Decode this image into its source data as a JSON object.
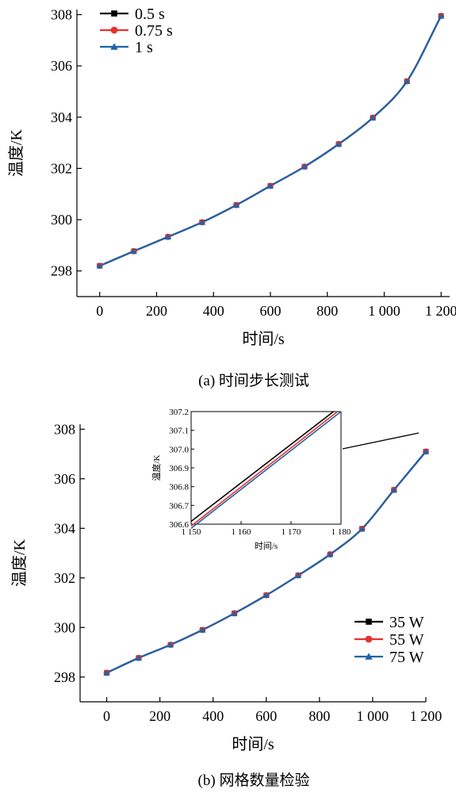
{
  "colors": {
    "series_1": "#000000",
    "series_2": "#e8302f",
    "series_3": "#1f64a8"
  },
  "chart_data": [
    {
      "type": "line",
      "caption": "(a) 时间步长测试",
      "xlabel": "时间/s",
      "ylabel": "温度/K",
      "xlim": [
        -80,
        1230
      ],
      "ylim": [
        297.0,
        308.2
      ],
      "xticks": [
        0,
        200,
        400,
        600,
        800,
        1000,
        1200
      ],
      "xtick_labels": [
        "0",
        "200",
        "400",
        "600",
        "800",
        "1 000",
        "1 200"
      ],
      "yticks": [
        298,
        300,
        302,
        304,
        306,
        308
      ],
      "ytick_labels": [
        "298",
        "300",
        "302",
        "304",
        "306",
        "308"
      ],
      "legend_position": "top-left",
      "x": [
        0,
        120,
        240,
        360,
        480,
        600,
        720,
        840,
        960,
        1080,
        1200
      ],
      "series": [
        {
          "name": "0.5 s",
          "marker": "square",
          "values": [
            298.2,
            298.77,
            299.33,
            299.9,
            300.57,
            301.32,
            302.07,
            302.95,
            303.98,
            305.4,
            307.95
          ]
        },
        {
          "name": "0.75 s",
          "marker": "circle",
          "values": [
            298.2,
            298.77,
            299.33,
            299.9,
            300.57,
            301.32,
            302.07,
            302.95,
            303.98,
            305.4,
            307.95
          ]
        },
        {
          "name": "1 s",
          "marker": "triangle",
          "values": [
            298.2,
            298.77,
            299.33,
            299.9,
            300.57,
            301.32,
            302.07,
            302.95,
            303.98,
            305.4,
            307.95
          ]
        }
      ]
    },
    {
      "type": "line",
      "caption": "(b) 网格数量检验",
      "xlabel": "时间/s",
      "ylabel": "温度/K",
      "xlim": [
        -100,
        1200
      ],
      "ylim": [
        297.0,
        308.2
      ],
      "xticks": [
        0,
        200,
        400,
        600,
        800,
        1000,
        1200
      ],
      "xtick_labels": [
        "0",
        "200",
        "400",
        "600",
        "800",
        "1 000",
        "1 200"
      ],
      "yticks": [
        298,
        300,
        302,
        304,
        306,
        308
      ],
      "ytick_labels": [
        "298",
        "300",
        "302",
        "304",
        "306",
        "308"
      ],
      "legend_position": "bottom-right",
      "x": [
        0,
        120,
        240,
        360,
        480,
        600,
        720,
        840,
        960,
        1080,
        1200
      ],
      "series": [
        {
          "name": "35 W",
          "marker": "square",
          "values": [
            298.17,
            298.77,
            299.3,
            299.9,
            300.57,
            301.3,
            302.1,
            302.95,
            303.98,
            305.55,
            307.1
          ]
        },
        {
          "name": "55 W",
          "marker": "circle",
          "values": [
            298.17,
            298.77,
            299.3,
            299.9,
            300.57,
            301.3,
            302.1,
            302.95,
            303.98,
            305.55,
            307.1
          ]
        },
        {
          "name": "75 W",
          "marker": "triangle",
          "values": [
            298.17,
            298.77,
            299.3,
            299.9,
            300.57,
            301.3,
            302.1,
            302.95,
            303.98,
            305.55,
            307.1
          ]
        }
      ],
      "inset": {
        "xlabel": "时间/s",
        "ylabel": "温度/K",
        "xlim": [
          1150,
          1180
        ],
        "ylim": [
          306.6,
          307.2
        ],
        "xticks": [
          1150,
          1160,
          1170,
          1180
        ],
        "xtick_labels": [
          "1 150",
          "1 160",
          "1 170",
          "1 180"
        ],
        "yticks": [
          306.6,
          306.7,
          306.8,
          306.9,
          307.0,
          307.1,
          307.2
        ],
        "ytick_labels": [
          "306.6",
          "306.7",
          "306.8",
          "306.9",
          "307.0",
          "307.1",
          "307.2"
        ],
        "series": [
          {
            "name": "35 W",
            "x": [
              1150,
              1178.5
            ],
            "values": [
              306.615,
              307.2
            ]
          },
          {
            "name": "55 W",
            "x": [
              1150,
              1179.3
            ],
            "values": [
              306.59,
              307.2
            ]
          },
          {
            "name": "75 W",
            "x": [
              1150,
              1180
            ],
            "values": [
              306.578,
              307.2
            ]
          }
        ]
      }
    }
  ]
}
